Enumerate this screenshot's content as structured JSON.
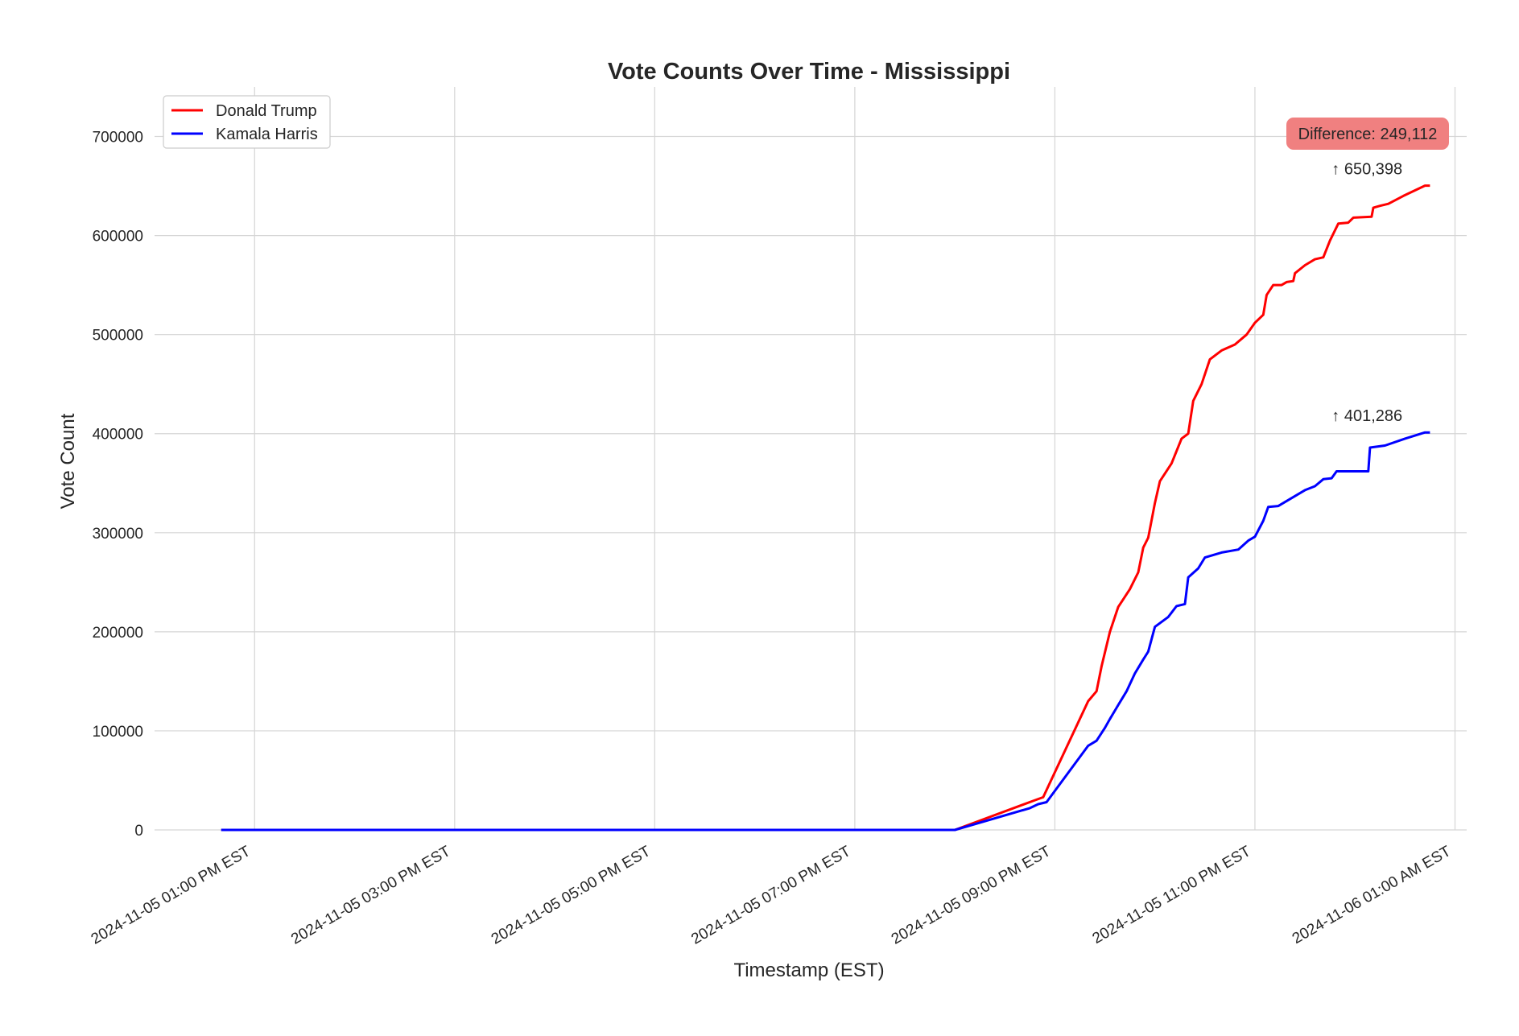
{
  "chart_data": {
    "type": "line",
    "title": "Vote Counts Over Time - Mississippi",
    "xlabel": "Timestamp (EST)",
    "ylabel": "Vote Count",
    "ylim": [
      0,
      750000
    ],
    "xlim": [
      "2024-11-05T12:00",
      "2024-11-06T01:07"
    ],
    "grid": true,
    "legend_position": "top-left",
    "x_ticks": [
      {
        "t": "2024-11-05T13:00",
        "label": "2024-11-05 01:00 PM EST"
      },
      {
        "t": "2024-11-05T15:00",
        "label": "2024-11-05 03:00 PM EST"
      },
      {
        "t": "2024-11-05T17:00",
        "label": "2024-11-05 05:00 PM EST"
      },
      {
        "t": "2024-11-05T19:00",
        "label": "2024-11-05 07:00 PM EST"
      },
      {
        "t": "2024-11-05T21:00",
        "label": "2024-11-05 09:00 PM EST"
      },
      {
        "t": "2024-11-05T23:00",
        "label": "2024-11-05 11:00 PM EST"
      },
      {
        "t": "2024-11-06T01:00",
        "label": "2024-11-06 01:00 AM EST"
      }
    ],
    "y_ticks": [
      0,
      100000,
      200000,
      300000,
      400000,
      500000,
      600000,
      700000
    ],
    "series": [
      {
        "name": "Donald Trump",
        "color": "#ff0000",
        "points": [
          [
            "2024-11-05T12:40",
            0
          ],
          [
            "2024-11-05T20:00",
            0
          ],
          [
            "2024-11-05T20:48",
            30000
          ],
          [
            "2024-11-05T20:53",
            33000
          ],
          [
            "2024-11-05T21:20",
            130000
          ],
          [
            "2024-11-05T21:25",
            140000
          ],
          [
            "2024-11-05T21:28",
            165000
          ],
          [
            "2024-11-05T21:33",
            200000
          ],
          [
            "2024-11-05T21:38",
            225000
          ],
          [
            "2024-11-05T21:45",
            243000
          ],
          [
            "2024-11-05T21:50",
            260000
          ],
          [
            "2024-11-05T21:53",
            285000
          ],
          [
            "2024-11-05T21:56",
            295000
          ],
          [
            "2024-11-05T22:00",
            330000
          ],
          [
            "2024-11-05T22:03",
            352000
          ],
          [
            "2024-11-05T22:10",
            370000
          ],
          [
            "2024-11-05T22:16",
            395000
          ],
          [
            "2024-11-05T22:20",
            400000
          ],
          [
            "2024-11-05T22:23",
            433000
          ],
          [
            "2024-11-05T22:28",
            450000
          ],
          [
            "2024-11-05T22:33",
            475000
          ],
          [
            "2024-11-05T22:40",
            484000
          ],
          [
            "2024-11-05T22:48",
            490000
          ],
          [
            "2024-11-05T22:55",
            500000
          ],
          [
            "2024-11-05T23:00",
            512000
          ],
          [
            "2024-11-05T23:05",
            520000
          ],
          [
            "2024-11-05T23:07",
            540000
          ],
          [
            "2024-11-05T23:11",
            550000
          ],
          [
            "2024-11-05T23:16",
            550000
          ],
          [
            "2024-11-05T23:19",
            553000
          ],
          [
            "2024-11-05T23:23",
            554000
          ],
          [
            "2024-11-05T23:24",
            562000
          ],
          [
            "2024-11-05T23:30",
            570000
          ],
          [
            "2024-11-05T23:36",
            576000
          ],
          [
            "2024-11-05T23:41",
            578000
          ],
          [
            "2024-11-05T23:45",
            595000
          ],
          [
            "2024-11-05T23:50",
            612000
          ],
          [
            "2024-11-05T23:56",
            613000
          ],
          [
            "2024-11-05T23:59",
            618000
          ],
          [
            "2024-11-06T00:10",
            619000
          ],
          [
            "2024-11-06T00:11",
            628000
          ],
          [
            "2024-11-06T00:15",
            630000
          ],
          [
            "2024-11-06T00:20",
            632000
          ],
          [
            "2024-11-06T00:29",
            640000
          ],
          [
            "2024-11-06T00:42",
            650398
          ],
          [
            "2024-11-06T00:45",
            650398
          ]
        ]
      },
      {
        "name": "Kamala Harris",
        "color": "#0000ff",
        "points": [
          [
            "2024-11-05T12:40",
            0
          ],
          [
            "2024-11-05T20:00",
            0
          ],
          [
            "2024-11-05T20:45",
            22000
          ],
          [
            "2024-11-05T20:50",
            26000
          ],
          [
            "2024-11-05T20:55",
            28000
          ],
          [
            "2024-11-05T21:20",
            85000
          ],
          [
            "2024-11-05T21:25",
            90000
          ],
          [
            "2024-11-05T21:30",
            103000
          ],
          [
            "2024-11-05T21:33",
            112000
          ],
          [
            "2024-11-05T21:38",
            126000
          ],
          [
            "2024-11-05T21:43",
            140000
          ],
          [
            "2024-11-05T21:48",
            158000
          ],
          [
            "2024-11-05T21:53",
            172000
          ],
          [
            "2024-11-05T21:56",
            180000
          ],
          [
            "2024-11-05T22:00",
            205000
          ],
          [
            "2024-11-05T22:08",
            215000
          ],
          [
            "2024-11-05T22:13",
            226000
          ],
          [
            "2024-11-05T22:18",
            228000
          ],
          [
            "2024-11-05T22:20",
            255000
          ],
          [
            "2024-11-05T22:26",
            264000
          ],
          [
            "2024-11-05T22:30",
            275000
          ],
          [
            "2024-11-05T22:40",
            280000
          ],
          [
            "2024-11-05T22:50",
            283000
          ],
          [
            "2024-11-05T22:56",
            292000
          ],
          [
            "2024-11-05T23:00",
            296000
          ],
          [
            "2024-11-05T23:05",
            312000
          ],
          [
            "2024-11-05T23:08",
            326000
          ],
          [
            "2024-11-05T23:14",
            327000
          ],
          [
            "2024-11-05T23:20",
            333000
          ],
          [
            "2024-11-05T23:30",
            343000
          ],
          [
            "2024-11-05T23:36",
            347000
          ],
          [
            "2024-11-05T23:41",
            354000
          ],
          [
            "2024-11-05T23:46",
            355000
          ],
          [
            "2024-11-05T23:49",
            362000
          ],
          [
            "2024-11-06T00:08",
            362000
          ],
          [
            "2024-11-06T00:09",
            386000
          ],
          [
            "2024-11-06T00:18",
            388000
          ],
          [
            "2024-11-06T00:30",
            395000
          ],
          [
            "2024-11-06T00:42",
            401286
          ],
          [
            "2024-11-06T00:45",
            401286
          ]
        ]
      }
    ],
    "annotations": [
      {
        "text": "↑ 650,398",
        "t": "2024-11-06T00:42",
        "y": 650398
      },
      {
        "text": "↑ 401,286",
        "t": "2024-11-06T00:42",
        "y": 401286
      }
    ],
    "difference_label": "Difference: 249,112",
    "difference_box_color": "#f08080"
  }
}
